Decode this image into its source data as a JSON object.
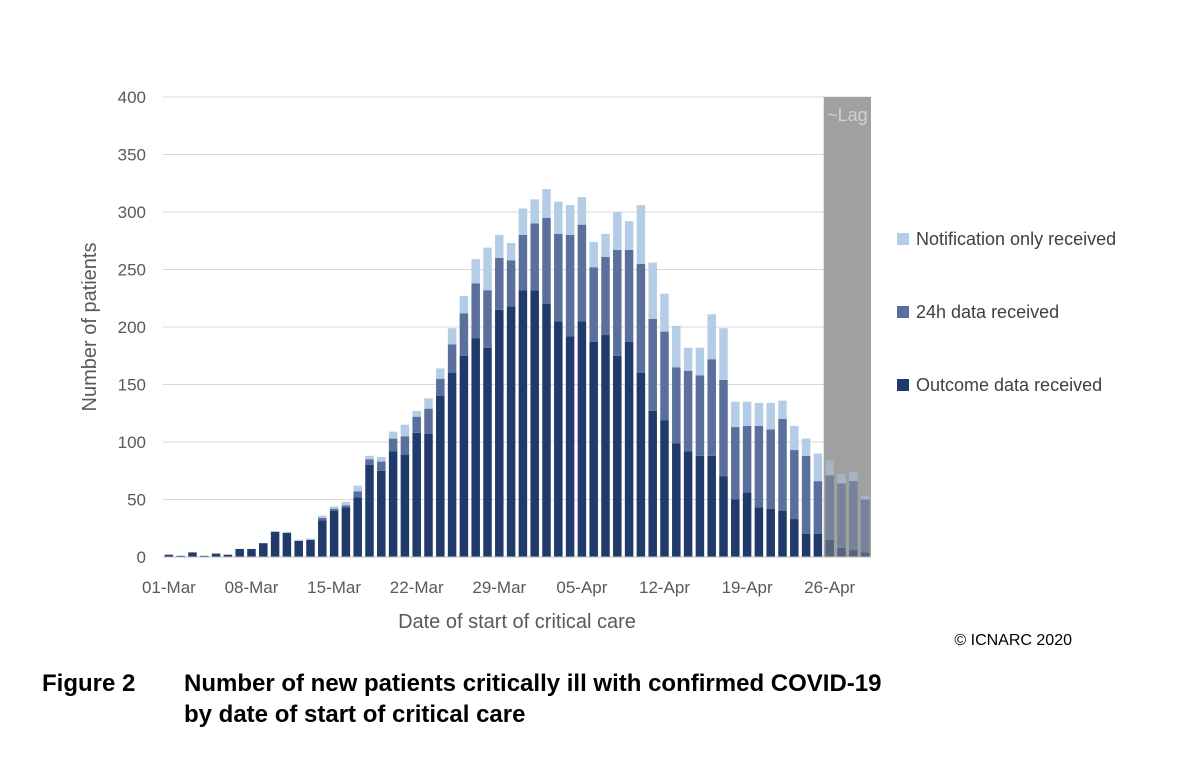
{
  "chart_data": {
    "type": "bar",
    "stacked": true,
    "xlabel": "Date of start of critical care",
    "ylabel": "Number of patients",
    "ylim": [
      0,
      400
    ],
    "y_ticks": [
      "0",
      "50",
      "100",
      "150",
      "200",
      "250",
      "300",
      "350",
      "400"
    ],
    "x_tick_labels": [
      "01-Mar",
      "08-Mar",
      "15-Mar",
      "22-Mar",
      "29-Mar",
      "05-Apr",
      "12-Apr",
      "19-Apr",
      "26-Apr"
    ],
    "gridlines": true,
    "legend_position": "right",
    "lag_label": "~Lag",
    "lag_region": [
      "26-Apr",
      "29-Apr"
    ],
    "categories": [
      "01-Mar",
      "02-Mar",
      "03-Mar",
      "04-Mar",
      "05-Mar",
      "06-Mar",
      "07-Mar",
      "08-Mar",
      "09-Mar",
      "10-Mar",
      "11-Mar",
      "12-Mar",
      "13-Mar",
      "14-Mar",
      "15-Mar",
      "16-Mar",
      "17-Mar",
      "18-Mar",
      "19-Mar",
      "20-Mar",
      "21-Mar",
      "22-Mar",
      "23-Mar",
      "24-Mar",
      "25-Mar",
      "26-Mar",
      "27-Mar",
      "28-Mar",
      "29-Mar",
      "30-Mar",
      "31-Mar",
      "01-Apr",
      "02-Apr",
      "03-Apr",
      "04-Apr",
      "05-Apr",
      "06-Apr",
      "07-Apr",
      "08-Apr",
      "09-Apr",
      "10-Apr",
      "11-Apr",
      "12-Apr",
      "13-Apr",
      "14-Apr",
      "15-Apr",
      "16-Apr",
      "17-Apr",
      "18-Apr",
      "19-Apr",
      "20-Apr",
      "21-Apr",
      "22-Apr",
      "23-Apr",
      "24-Apr",
      "25-Apr",
      "26-Apr",
      "27-Apr",
      "28-Apr",
      "29-Apr"
    ],
    "series": [
      {
        "name": "Outcome data received",
        "color": "#1f3a6b",
        "values": [
          2,
          1,
          4,
          1,
          3,
          2,
          7,
          7,
          12,
          22,
          21,
          14,
          15,
          32,
          40,
          43,
          52,
          80,
          75,
          92,
          89,
          108,
          107,
          140,
          160,
          175,
          190,
          182,
          215,
          218,
          232,
          232,
          220,
          205,
          192,
          205,
          187,
          193,
          175,
          187,
          160,
          127,
          119,
          99,
          92,
          88,
          88,
          70,
          50,
          56,
          43,
          42,
          40,
          33,
          20,
          20,
          15,
          8,
          6,
          4
        ]
      },
      {
        "name": "24h data received",
        "color": "#5a6f9c",
        "values": [
          0,
          0,
          0,
          0,
          0,
          0,
          0,
          0,
          0,
          0,
          0,
          0,
          0,
          2,
          2,
          2,
          5,
          5,
          8,
          11,
          16,
          14,
          22,
          15,
          25,
          37,
          48,
          50,
          45,
          40,
          48,
          58,
          75,
          76,
          88,
          84,
          65,
          68,
          92,
          80,
          95,
          80,
          77,
          66,
          70,
          70,
          84,
          84,
          63,
          58,
          71,
          69,
          80,
          60,
          68,
          46,
          56,
          56,
          60,
          46
        ]
      },
      {
        "name": "Notification only received",
        "color": "#b3cde6",
        "values": [
          0,
          0,
          0,
          0,
          0,
          0,
          0,
          0,
          0,
          0,
          1,
          1,
          1,
          2,
          2,
          3,
          5,
          3,
          4,
          6,
          10,
          5,
          9,
          9,
          14,
          15,
          21,
          37,
          20,
          15,
          23,
          21,
          25,
          28,
          26,
          24,
          22,
          20,
          33,
          25,
          51,
          49,
          33,
          36,
          20,
          24,
          39,
          45,
          22,
          21,
          20,
          23,
          16,
          21,
          15,
          24,
          13,
          8,
          8,
          3
        ]
      }
    ],
    "copyright": "© ICNARC 2020"
  },
  "caption": {
    "figure_label": "Figure 2",
    "title_line1": "Number of new patients critically ill with confirmed COVID-19",
    "title_line2": "by date of start of critical care"
  }
}
